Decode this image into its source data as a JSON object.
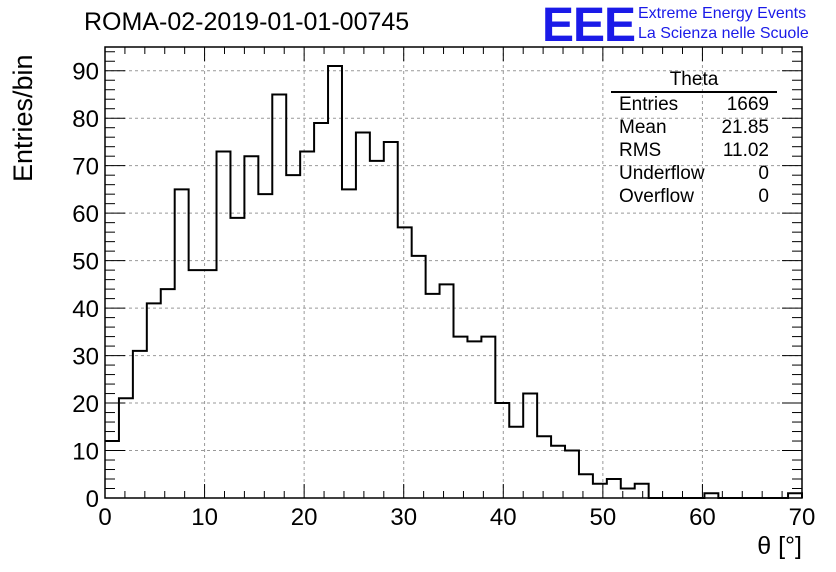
{
  "title": "ROMA-02-2019-01-01-00745",
  "logo": {
    "mark": "EEE",
    "line1": "Extreme Energy Events",
    "line2": "La Scienza nelle Scuole",
    "color": "#1a1ae8"
  },
  "stats_box": {
    "name": "Theta",
    "rows": [
      {
        "label": "Entries",
        "value": "1669"
      },
      {
        "label": "Mean",
        "value": "21.85"
      },
      {
        "label": "RMS",
        "value": "11.02"
      },
      {
        "label": "Underflow",
        "value": "0"
      },
      {
        "label": "Overflow",
        "value": "0"
      }
    ]
  },
  "chart_data": {
    "type": "bar",
    "histogram": true,
    "bin_width": 1.4,
    "xlabel": "θ [°]",
    "ylabel": "Entries/bin",
    "xlim": [
      0,
      70
    ],
    "ylim": [
      0,
      95
    ],
    "xticks": [
      0,
      10,
      20,
      30,
      40,
      50,
      60,
      70
    ],
    "yticks": [
      0,
      10,
      20,
      30,
      40,
      50,
      60,
      70,
      80,
      90
    ],
    "grid": true,
    "line_color": "#000000",
    "values": [
      12,
      21,
      31,
      41,
      44,
      65,
      48,
      48,
      73,
      59,
      72,
      64,
      85,
      68,
      73,
      79,
      91,
      65,
      77,
      71,
      75,
      57,
      51,
      43,
      45,
      34,
      33,
      34,
      20,
      15,
      22,
      13,
      11,
      10,
      5,
      3,
      4,
      2,
      3,
      0,
      0,
      0,
      0,
      1,
      0,
      0,
      0,
      0,
      0,
      1
    ]
  }
}
